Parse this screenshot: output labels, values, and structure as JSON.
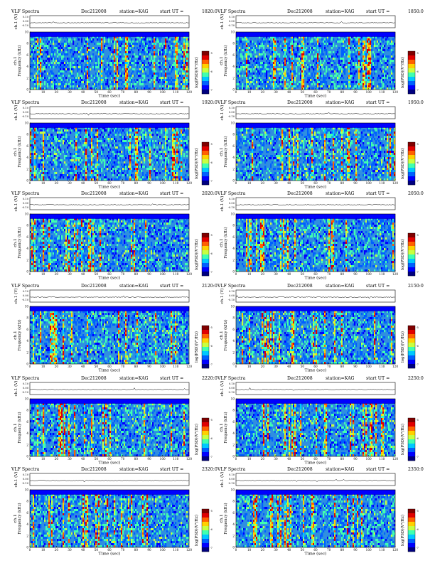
{
  "header_labels": {
    "title": "VLF Spectra",
    "date": "Dec212008",
    "station": "station=KAG",
    "start_prefix": "start  UT  ="
  },
  "chart_data": [
    {
      "type": "heatmap",
      "start_ut": "1820:0",
      "xlabel": "Time  (sec)",
      "ylabel": "Frequency  (kHz)",
      "channel_label": "ch.1",
      "amp_label": "ch.1 (V)",
      "amp_ticks": [
        "0.10",
        "0.00",
        "-0.10"
      ],
      "xlim": [
        0,
        120
      ],
      "xticks": [
        0,
        10,
        20,
        30,
        40,
        50,
        60,
        70,
        80,
        90,
        100,
        110,
        120
      ],
      "ylim": [
        0,
        10
      ],
      "yticks": [
        0,
        2,
        4,
        6,
        8,
        10
      ],
      "colorbar_label": "log(PSD)(V²/Hz)",
      "colorbar_ticks": [
        "-5",
        "-6",
        "-7"
      ]
    },
    {
      "type": "heatmap",
      "start_ut": "1850:0",
      "xlabel": "Time  (sec)",
      "ylabel": "Frequency  (kHz)",
      "channel_label": "ch.1",
      "amp_label": "ch.1 (V)",
      "amp_ticks": [
        "0.10",
        "0.00",
        "-0.10"
      ],
      "xlim": [
        0,
        120
      ],
      "xticks": [
        0,
        10,
        20,
        30,
        40,
        50,
        60,
        70,
        80,
        90,
        100,
        110,
        120
      ],
      "ylim": [
        0,
        10
      ],
      "yticks": [
        0,
        2,
        4,
        6,
        8,
        10
      ],
      "colorbar_label": "log(PSD)(V²/Hz)",
      "colorbar_ticks": [
        "-5",
        "-6",
        "-7"
      ]
    },
    {
      "type": "heatmap",
      "start_ut": "1920:0",
      "xlabel": "Time  (sec)",
      "ylabel": "Frequency  (kHz)",
      "channel_label": "ch.1",
      "amp_label": "ch.1 (V)",
      "amp_ticks": [
        "0.10",
        "0.00",
        "-0.10"
      ],
      "xlim": [
        0,
        120
      ],
      "xticks": [
        0,
        10,
        20,
        30,
        40,
        50,
        60,
        70,
        80,
        90,
        100,
        110,
        120
      ],
      "ylim": [
        0,
        10
      ],
      "yticks": [
        0,
        2,
        4,
        6,
        8,
        10
      ],
      "colorbar_label": "log(PSD)(V²/Hz)",
      "colorbar_ticks": [
        "-5",
        "-6",
        "-7"
      ]
    },
    {
      "type": "heatmap",
      "start_ut": "1950:0",
      "xlabel": "Time  (sec)",
      "ylabel": "Frequency  (kHz)",
      "channel_label": "ch.1",
      "amp_label": "ch.1 (V)",
      "amp_ticks": [
        "0.10",
        "0.00",
        "-0.10"
      ],
      "xlim": [
        0,
        120
      ],
      "xticks": [
        0,
        10,
        20,
        30,
        40,
        50,
        60,
        70,
        80,
        90,
        100,
        110,
        120
      ],
      "ylim": [
        0,
        10
      ],
      "yticks": [
        0,
        2,
        4,
        6,
        8,
        10
      ],
      "colorbar_label": "log(PSD)(V²/Hz)",
      "colorbar_ticks": [
        "-5",
        "-6",
        "-7"
      ]
    },
    {
      "type": "heatmap",
      "start_ut": "2020:0",
      "xlabel": "Time  (sec)",
      "ylabel": "Frequency  (kHz)",
      "channel_label": "ch.1",
      "amp_label": "ch.1 (V)",
      "amp_ticks": [
        "0.10",
        "0.00",
        "-0.10"
      ],
      "xlim": [
        0,
        120
      ],
      "xticks": [
        0,
        10,
        20,
        30,
        40,
        50,
        60,
        70,
        80,
        90,
        100,
        110,
        120
      ],
      "ylim": [
        0,
        10
      ],
      "yticks": [
        0,
        2,
        4,
        6,
        8,
        10
      ],
      "colorbar_label": "log(PSD)(V²/Hz)",
      "colorbar_ticks": [
        "-5",
        "-6",
        "-7"
      ]
    },
    {
      "type": "heatmap",
      "start_ut": "2050:0",
      "xlabel": "Time  (sec)",
      "ylabel": "Frequency  (kHz)",
      "channel_label": "ch.1",
      "amp_label": "ch.1 (V)",
      "amp_ticks": [
        "0.10",
        "0.00",
        "-0.10"
      ],
      "xlim": [
        0,
        120
      ],
      "xticks": [
        0,
        10,
        20,
        30,
        40,
        50,
        60,
        70,
        80,
        90,
        100,
        110,
        120
      ],
      "ylim": [
        0,
        10
      ],
      "yticks": [
        0,
        2,
        4,
        6,
        8,
        10
      ],
      "colorbar_label": "log(PSD)(V²/Hz)",
      "colorbar_ticks": [
        "-5",
        "-6",
        "-7"
      ]
    },
    {
      "type": "heatmap",
      "start_ut": "2120:0",
      "xlabel": "Time  (sec)",
      "ylabel": "Frequency  (kHz)",
      "channel_label": "ch.1",
      "amp_label": "ch.1 (V)",
      "amp_ticks": [
        "0.10",
        "0.00",
        "-0.10"
      ],
      "xlim": [
        0,
        120
      ],
      "xticks": [
        0,
        10,
        20,
        30,
        40,
        50,
        60,
        70,
        80,
        90,
        100,
        110,
        120
      ],
      "ylim": [
        0,
        10
      ],
      "yticks": [
        0,
        2,
        4,
        6,
        8,
        10
      ],
      "colorbar_label": "log(PSD)(V²/Hz)",
      "colorbar_ticks": [
        "-5",
        "-6",
        "-7"
      ]
    },
    {
      "type": "heatmap",
      "start_ut": "2150:0",
      "xlabel": "Time  (sec)",
      "ylabel": "Frequency  (kHz)",
      "channel_label": "ch.1",
      "amp_label": "ch.1 (V)",
      "amp_ticks": [
        "0.10",
        "0.00",
        "-0.10"
      ],
      "xlim": [
        0,
        120
      ],
      "xticks": [
        0,
        10,
        20,
        30,
        40,
        50,
        60,
        70,
        80,
        90,
        100,
        110,
        120
      ],
      "ylim": [
        0,
        10
      ],
      "yticks": [
        0,
        2,
        4,
        6,
        8,
        10
      ],
      "colorbar_label": "log(PSD)(V²/Hz)",
      "colorbar_ticks": [
        "-5",
        "-6",
        "-7"
      ]
    },
    {
      "type": "heatmap",
      "start_ut": "2220:0",
      "xlabel": "Time  (sec)",
      "ylabel": "Frequency  (kHz)",
      "channel_label": "ch.1",
      "amp_label": "ch.1 (V)",
      "amp_ticks": [
        "0.10",
        "0.00",
        "-0.10"
      ],
      "xlim": [
        0,
        120
      ],
      "xticks": [
        0,
        10,
        20,
        30,
        40,
        50,
        60,
        70,
        80,
        90,
        100,
        110,
        120
      ],
      "ylim": [
        0,
        10
      ],
      "yticks": [
        0,
        2,
        4,
        6,
        8,
        10
      ],
      "colorbar_label": "log(PSD)(V²/Hz)",
      "colorbar_ticks": [
        "-5",
        "-6",
        "-7"
      ]
    },
    {
      "type": "heatmap",
      "start_ut": "2250:0",
      "xlabel": "Time  (sec)",
      "ylabel": "Frequency  (kHz)",
      "channel_label": "ch.1",
      "amp_label": "ch.1 (V)",
      "amp_ticks": [
        "0.10",
        "0.00",
        "-0.10"
      ],
      "xlim": [
        0,
        120
      ],
      "xticks": [
        0,
        10,
        20,
        30,
        40,
        50,
        60,
        70,
        80,
        90,
        100,
        110,
        120
      ],
      "ylim": [
        0,
        10
      ],
      "yticks": [
        0,
        2,
        4,
        6,
        8,
        10
      ],
      "colorbar_label": "log(PSD)(V²/Hz)",
      "colorbar_ticks": [
        "-5",
        "-6",
        "-7"
      ]
    },
    {
      "type": "heatmap",
      "start_ut": "2320:0",
      "xlabel": "Time  (sec)",
      "ylabel": "Frequency  (kHz)",
      "channel_label": "ch.1",
      "amp_label": "ch.1 (V)",
      "amp_ticks": [
        "0.10",
        "0.00",
        "-0.10"
      ],
      "xlim": [
        0,
        120
      ],
      "xticks": [
        0,
        10,
        20,
        30,
        40,
        50,
        60,
        70,
        80,
        90,
        100,
        110,
        120
      ],
      "ylim": [
        0,
        10
      ],
      "yticks": [
        0,
        2,
        4,
        6,
        8,
        10
      ],
      "colorbar_label": "log(PSD)(V²/Hz)",
      "colorbar_ticks": [
        "-5",
        "-6",
        "-7"
      ]
    },
    {
      "type": "heatmap",
      "start_ut": "2350:0",
      "xlabel": "Time  (sec)",
      "ylabel": "Frequency  (kHz)",
      "channel_label": "ch.1",
      "amp_label": "ch.1 (V)",
      "amp_ticks": [
        "0.10",
        "0.00",
        "-0.10"
      ],
      "xlim": [
        0,
        120
      ],
      "xticks": [
        0,
        10,
        20,
        30,
        40,
        50,
        60,
        70,
        80,
        90,
        100,
        110,
        120
      ],
      "ylim": [
        0,
        10
      ],
      "yticks": [
        0,
        2,
        4,
        6,
        8,
        10
      ],
      "colorbar_label": "log(PSD)(V²/Hz)",
      "colorbar_ticks": [
        "-5",
        "-6",
        "-7"
      ]
    }
  ],
  "colors": {
    "background": "#2f8fe0",
    "colormap": [
      "#00007f",
      "#0000ff",
      "#0060ff",
      "#00c8ff",
      "#40ffb0",
      "#c8ff40",
      "#ffd000",
      "#ff6000",
      "#e00000",
      "#800000"
    ]
  }
}
